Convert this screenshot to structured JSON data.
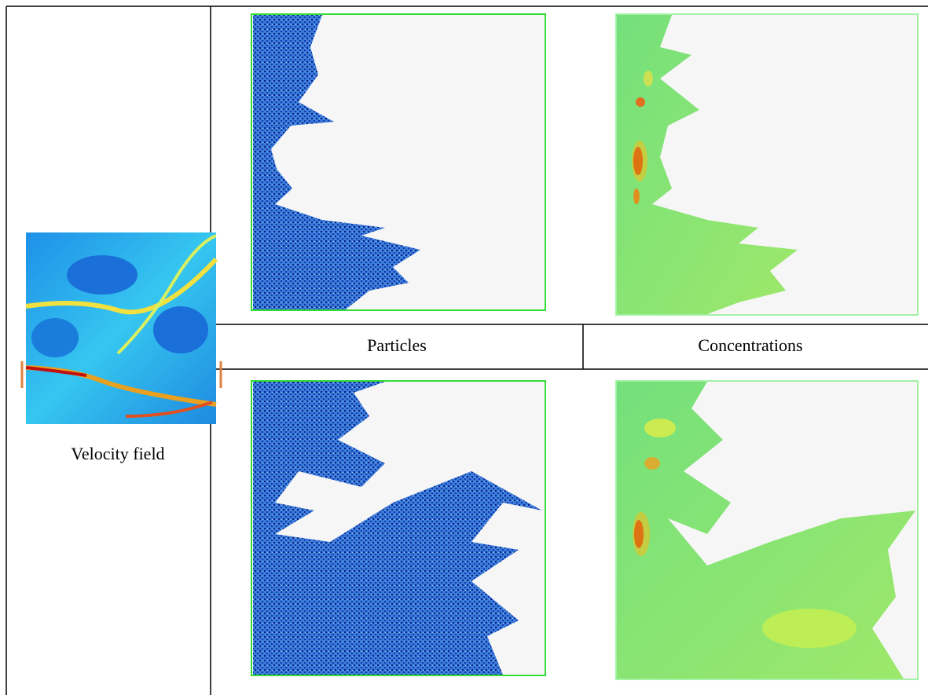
{
  "table": {
    "velocity_caption": "Velocity field",
    "header": [
      "Particles",
      "Concentrations"
    ]
  }
}
